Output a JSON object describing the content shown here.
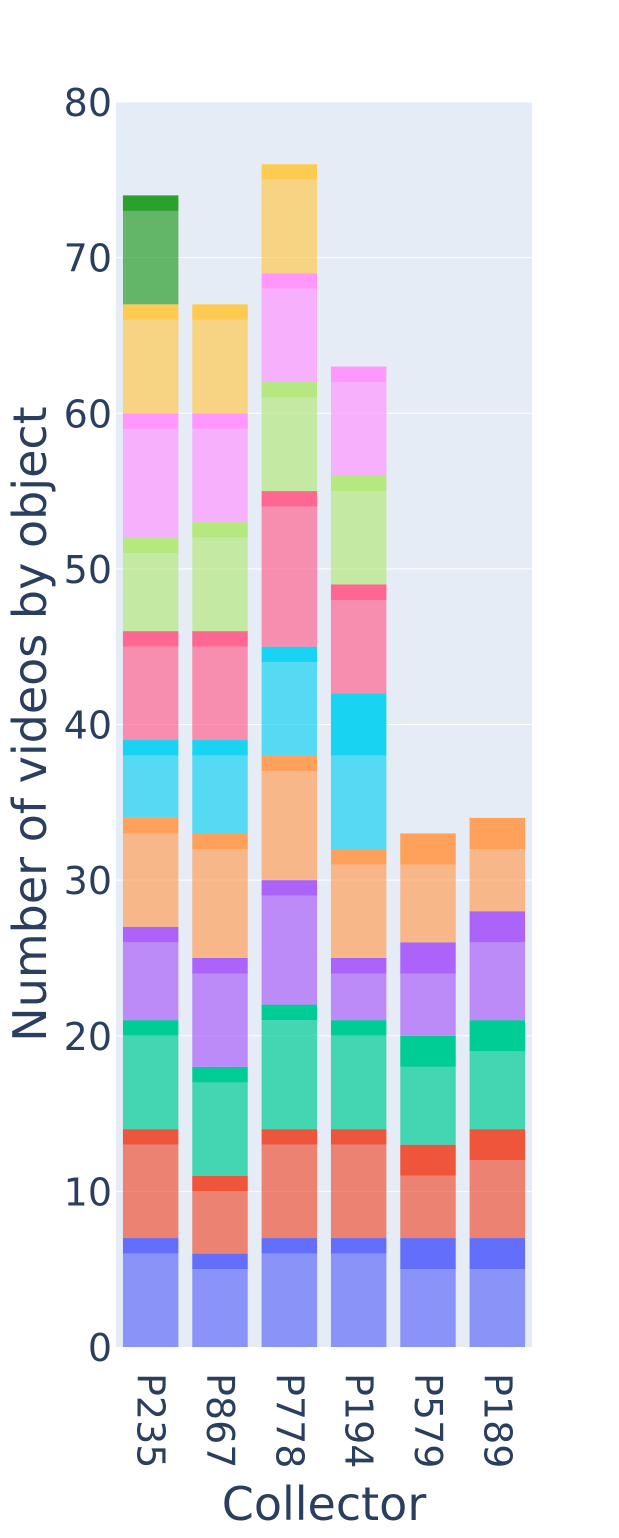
{
  "chart_data": {
    "type": "bar",
    "barmode": "stack",
    "title": "",
    "xlabel": "Collector",
    "ylabel": "Number of videos by object",
    "ylim": [
      0,
      80
    ],
    "y_ticks": [
      0,
      10,
      20,
      30,
      40,
      50,
      60,
      70,
      80
    ],
    "grid": true,
    "legend": "none",
    "categories": [
      "P235",
      "P867",
      "P778",
      "P194",
      "P579",
      "P189"
    ],
    "series": [
      {
        "color": "#636efa",
        "opacity": 0.7,
        "values": [
          6,
          5,
          6,
          6,
          5,
          5
        ]
      },
      {
        "color": "#636efa",
        "opacity": 1.0,
        "values": [
          1,
          1,
          1,
          1,
          2,
          2
        ]
      },
      {
        "color": "#ef553b",
        "opacity": 0.7,
        "values": [
          6,
          4,
          6,
          6,
          4,
          5
        ]
      },
      {
        "color": "#ef553b",
        "opacity": 1.0,
        "values": [
          1,
          1,
          1,
          1,
          2,
          2
        ]
      },
      {
        "color": "#00cc96",
        "opacity": 0.7,
        "values": [
          6,
          6,
          7,
          6,
          5,
          5
        ]
      },
      {
        "color": "#00cc96",
        "opacity": 1.0,
        "values": [
          1,
          1,
          1,
          1,
          2,
          2
        ]
      },
      {
        "color": "#ab63fa",
        "opacity": 0.7,
        "values": [
          5,
          6,
          7,
          3,
          4,
          5
        ]
      },
      {
        "color": "#ab63fa",
        "opacity": 1.0,
        "values": [
          1,
          1,
          1,
          1,
          2,
          2
        ]
      },
      {
        "color": "#ffa15a",
        "opacity": 0.7,
        "values": [
          6,
          7,
          7,
          6,
          5,
          4
        ]
      },
      {
        "color": "#ffa15a",
        "opacity": 1.0,
        "values": [
          1,
          1,
          1,
          1,
          2,
          2
        ]
      },
      {
        "color": "#19d3f3",
        "opacity": 0.7,
        "values": [
          4,
          5,
          6,
          6,
          0,
          0
        ]
      },
      {
        "color": "#19d3f3",
        "opacity": 1.0,
        "values": [
          1,
          1,
          1,
          4,
          0,
          0
        ]
      },
      {
        "color": "#ff6692",
        "opacity": 0.7,
        "values": [
          6,
          6,
          9,
          6,
          0,
          0
        ]
      },
      {
        "color": "#ff6692",
        "opacity": 1.0,
        "values": [
          1,
          1,
          1,
          1,
          0,
          0
        ]
      },
      {
        "color": "#b6e880",
        "opacity": 0.7,
        "values": [
          5,
          6,
          6,
          6,
          0,
          0
        ]
      },
      {
        "color": "#b6e880",
        "opacity": 1.0,
        "values": [
          1,
          1,
          1,
          1,
          0,
          0
        ]
      },
      {
        "color": "#ff97ff",
        "opacity": 0.7,
        "values": [
          7,
          6,
          6,
          6,
          0,
          0
        ]
      },
      {
        "color": "#ff97ff",
        "opacity": 1.0,
        "values": [
          1,
          1,
          1,
          1,
          0,
          0
        ]
      },
      {
        "color": "#fecb52",
        "opacity": 0.7,
        "values": [
          6,
          6,
          6,
          0,
          0,
          0
        ]
      },
      {
        "color": "#fecb52",
        "opacity": 1.0,
        "values": [
          1,
          1,
          1,
          0,
          0,
          0
        ]
      },
      {
        "color": "#2ca02c",
        "opacity": 0.7,
        "values": [
          6,
          0,
          0,
          0,
          0,
          0
        ]
      },
      {
        "color": "#2ca02c",
        "opacity": 1.0,
        "values": [
          1,
          0,
          0,
          0,
          0,
          0
        ]
      }
    ],
    "totals": [
      74,
      67,
      76,
      63,
      33,
      34
    ],
    "plot_background": "#e5ecf6",
    "grid_color": "#ffffff",
    "text_color": "#2a3f5f"
  }
}
